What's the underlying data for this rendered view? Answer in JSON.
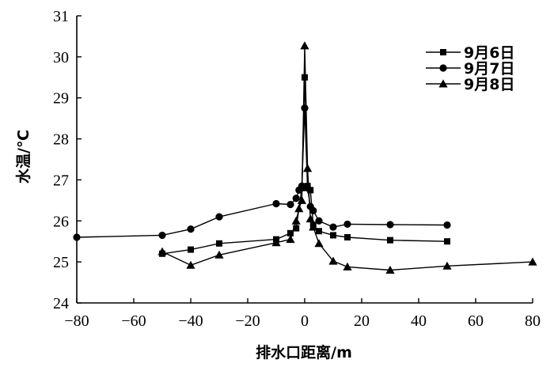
{
  "chart_data": {
    "type": "line",
    "xlabel": "排水口距离/m",
    "ylabel": "水温/℃",
    "xlim": [
      -80,
      80
    ],
    "ylim": [
      24,
      31
    ],
    "xticks": [
      -80,
      -60,
      -40,
      -20,
      0,
      20,
      40,
      60,
      80
    ],
    "yticks": [
      24,
      25,
      26,
      27,
      28,
      29,
      30,
      31
    ],
    "xtick_labels": [
      "−80",
      "−60",
      "−40",
      "−20",
      "0",
      "20",
      "40",
      "60",
      "80"
    ],
    "ytick_labels": [
      "24",
      "25",
      "26",
      "27",
      "28",
      "29",
      "30",
      "31"
    ],
    "grid": false,
    "legend_position": "top-right",
    "series": [
      {
        "name": "9月6日",
        "marker": "square",
        "x": [
          -50,
          -40,
          -30,
          -10,
          -5,
          -3,
          -1,
          0,
          1,
          2,
          3,
          5,
          10,
          15,
          30,
          50
        ],
        "y": [
          25.2,
          25.3,
          25.45,
          25.55,
          25.7,
          25.82,
          26.8,
          29.5,
          26.85,
          26.75,
          25.9,
          25.75,
          25.65,
          25.6,
          25.53,
          25.5
        ]
      },
      {
        "name": "9月7日",
        "marker": "circle",
        "x": [
          -80,
          -50,
          -40,
          -30,
          -10,
          -5,
          -3,
          -2,
          -1,
          0,
          1,
          2,
          3,
          5,
          10,
          15,
          30,
          50
        ],
        "y": [
          25.6,
          25.65,
          25.8,
          26.1,
          26.42,
          26.4,
          26.55,
          26.75,
          26.85,
          28.75,
          26.8,
          26.35,
          26.25,
          26.0,
          25.85,
          25.92,
          25.91,
          25.9
        ]
      },
      {
        "name": "9月8日",
        "marker": "triangle",
        "x": [
          -50,
          -40,
          -30,
          -10,
          -5,
          -3,
          -2,
          -1,
          0,
          1,
          2,
          3,
          5,
          10,
          15,
          30,
          50,
          80
        ],
        "y": [
          25.25,
          24.92,
          25.17,
          25.47,
          25.55,
          26.0,
          26.3,
          26.5,
          30.27,
          27.28,
          26.05,
          25.85,
          25.45,
          25.02,
          24.88,
          24.8,
          24.9,
          25.0
        ]
      }
    ]
  }
}
